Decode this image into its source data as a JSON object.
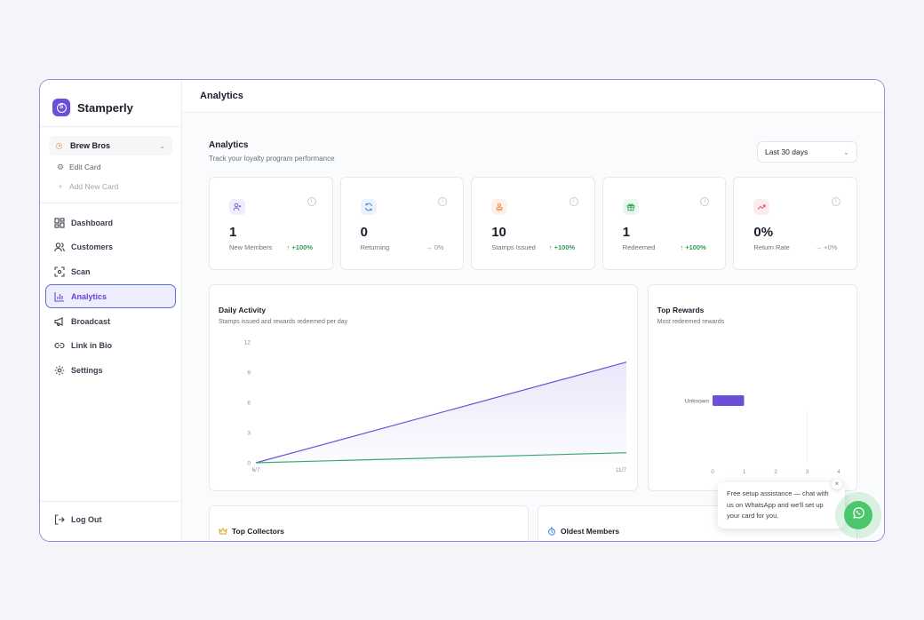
{
  "app": {
    "name": "Stamperly"
  },
  "store": {
    "name": "Brew Bros",
    "edit_label": "Edit Card",
    "add_label": "Add New Card"
  },
  "sidebar": {
    "items": [
      {
        "label": "Dashboard",
        "icon": "dashboard-icon"
      },
      {
        "label": "Customers",
        "icon": "users-icon"
      },
      {
        "label": "Scan",
        "icon": "scan-icon"
      },
      {
        "label": "Analytics",
        "icon": "bar-chart-icon",
        "active": true
      },
      {
        "label": "Broadcast",
        "icon": "megaphone-icon"
      },
      {
        "label": "Link in Bio",
        "icon": "link-icon"
      },
      {
        "label": "Settings",
        "icon": "gear-icon"
      }
    ],
    "logout_label": "Log Out"
  },
  "header": {
    "title": "Analytics"
  },
  "page": {
    "title": "Analytics",
    "subtitle": "Track your loyalty program performance"
  },
  "date_range": {
    "selected": "Last 30 days"
  },
  "stats": [
    {
      "value": "1",
      "label": "New Members",
      "delta": "↑ +100%",
      "color": "#6b4fd8",
      "bg": "#f0edfd",
      "icon": "user-plus-icon"
    },
    {
      "value": "0",
      "label": "Returning",
      "delta": "→ 0%",
      "color": "#3b7fe6",
      "bg": "#ecf3fd",
      "icon": "refresh-icon"
    },
    {
      "value": "10",
      "label": "Stamps Issued",
      "delta": "↑ +100%",
      "color": "#f08a4b",
      "bg": "#fdf1ea",
      "icon": "stamp-icon"
    },
    {
      "value": "1",
      "label": "Redeemed",
      "delta": "↑ +100%",
      "color": "#2e9e55",
      "bg": "#eaf7ef",
      "icon": "gift-icon"
    },
    {
      "value": "0%",
      "label": "Return Rate",
      "delta": "→ +0%",
      "color": "#e0455d",
      "bg": "#fdecef",
      "icon": "trending-up-icon"
    }
  ],
  "daily_activity": {
    "title": "Daily Activity",
    "subtitle": "Stamps issued and rewards redeemed per day"
  },
  "top_rewards": {
    "title": "Top Rewards",
    "subtitle": "Most redeemed rewards"
  },
  "chart_data": [
    {
      "type": "area",
      "title": "Daily Activity",
      "subtitle": "Stamps issued and rewards redeemed per day",
      "x": [
        "6/7",
        "11/7"
      ],
      "series": [
        {
          "values": [
            0,
            10
          ],
          "color": "#6b4fd8"
        },
        {
          "values": [
            0,
            1
          ],
          "color": "#3aa873"
        }
      ],
      "yticks": [
        0,
        3,
        6,
        9,
        12
      ],
      "ylim": [
        0,
        12
      ],
      "grid": false
    },
    {
      "type": "bar",
      "orientation": "horizontal",
      "title": "Top Rewards",
      "subtitle": "Most redeemed rewards",
      "categories": [
        "Unknown"
      ],
      "values": [
        1
      ],
      "color": "#6b4fd8",
      "xticks": [
        0,
        1,
        2,
        3,
        4
      ],
      "xlim": [
        0,
        4
      ]
    }
  ],
  "bottom": {
    "collectors_title": "Top Collectors",
    "oldest_title": "Oldest Members"
  },
  "whatsapp": {
    "message": "Free setup assistance — chat with us on WhatsApp and we'll set up your card for you.",
    "close": "×"
  }
}
